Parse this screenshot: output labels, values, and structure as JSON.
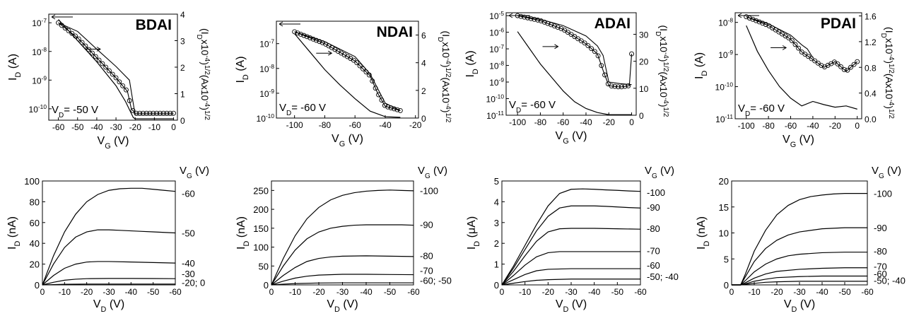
{
  "chart_data": [
    {
      "panel": "BDAI transfer",
      "type": "line",
      "title": "BDAI",
      "annotation": "V_D= -50 V",
      "xlabel": "V_G (V)",
      "ylabel": "I_D (A)",
      "y2label": "(I_Dx10^-4)^1/2(Ax10^-4)^1/2",
      "xlim": [
        -65,
        2
      ],
      "ylim_log": [
        4e-11,
        2e-07
      ],
      "y2lim": [
        0,
        4
      ],
      "xticks": [
        "-60",
        "-50",
        "-40",
        "-30",
        "-20",
        "-10",
        "0"
      ],
      "yticks": [
        "10-7",
        "10-8",
        "10-9",
        "10-10"
      ],
      "y2ticks": [
        "0",
        "1",
        "2",
        "3",
        "4"
      ],
      "series": [
        {
          "kind": "log-forward",
          "x": [
            -60,
            -50,
            -40,
            -30,
            -24,
            -22,
            -20,
            -10,
            0
          ],
          "y": [
            1e-07,
            3e-08,
            6e-09,
            1.2e-09,
            4e-10,
            1e-10,
            7e-11,
            7e-11,
            7e-11
          ]
        },
        {
          "kind": "log-reverse",
          "x": [
            -60,
            -50,
            -40,
            -30,
            -23,
            -20,
            -10,
            0
          ],
          "y": [
            1e-07,
            5e-08,
            1.2e-08,
            3e-09,
            1e-09,
            6e-11,
            6e-11,
            6e-11
          ]
        },
        {
          "kind": "sqrt",
          "x": [
            -60,
            -50,
            -40,
            -30,
            -25,
            -21,
            -20,
            0
          ],
          "y2": [
            3.8,
            3.0,
            2.2,
            1.3,
            0.7,
            0.1,
            0.05,
            0.05
          ]
        }
      ]
    },
    {
      "panel": "NDAI transfer",
      "type": "line",
      "title": "NDAI",
      "annotation": "V_D= -60 V",
      "xlabel": "V_G (V)",
      "ylabel": "I_D (A)",
      "y2label": "(I_Dx10^-4)^1/2(Ax10^-4)^1/2",
      "xlim": [
        -112,
        -18
      ],
      "ylim_log": [
        1e-10,
        8e-07
      ],
      "y2lim": [
        0,
        7
      ],
      "xticks": [
        "-100",
        "-80",
        "-60",
        "-40",
        "-20"
      ],
      "yticks": [
        "10-7",
        "10-8",
        "10-9",
        "10-10"
      ],
      "y2ticks": [
        "0",
        "2",
        "4",
        "6"
      ],
      "series": [
        {
          "kind": "log-forward",
          "x": [
            -100,
            -80,
            -60,
            -50,
            -45,
            -40,
            -30
          ],
          "y": [
            3e-07,
            1e-07,
            2e-08,
            5e-09,
            1e-09,
            3e-10,
            2e-10
          ]
        },
        {
          "kind": "log-reverse",
          "x": [
            -100,
            -80,
            -60,
            -50,
            -40,
            -30
          ],
          "y": [
            3e-07,
            1.2e-07,
            3e-08,
            6e-09,
            4e-10,
            2e-10
          ]
        },
        {
          "kind": "sqrt",
          "x": [
            -100,
            -90,
            -80,
            -70,
            -60,
            -50,
            -40,
            -30
          ],
          "y2": [
            6.1,
            4.8,
            3.5,
            2.4,
            1.4,
            0.5,
            0.1,
            0.05
          ]
        }
      ]
    },
    {
      "panel": "ADAI transfer",
      "type": "line",
      "title": "ADAI",
      "annotation": "V_D= -60 V",
      "xlabel": "V_G (V)",
      "ylabel": "I_D (A)",
      "y2label": "(I_Dx10^-4)^1/2(Ax10^-4)^1/2",
      "xlim": [
        -110,
        4
      ],
      "ylim_log": [
        1e-11,
        1.5e-05
      ],
      "y2lim": [
        0,
        38
      ],
      "xticks": [
        "-100",
        "-80",
        "-60",
        "-40",
        "-20",
        "0"
      ],
      "yticks": [
        "10-5",
        "10-6",
        "10-7",
        "10-8",
        "10-9",
        "10-10",
        "10-11"
      ],
      "y2ticks": [
        "0",
        "10",
        "20",
        "30"
      ],
      "series": [
        {
          "kind": "log-forward",
          "x": [
            -100,
            -80,
            -60,
            -40,
            -30,
            -25,
            -20,
            -10,
            -2,
            0
          ],
          "y": [
            1e-05,
            5e-06,
            1.5e-06,
            2e-07,
            5e-08,
            5e-09,
            6e-10,
            5e-10,
            6e-10,
            5e-08
          ]
        },
        {
          "kind": "log-reverse",
          "x": [
            -100,
            -80,
            -60,
            -40,
            -30,
            -25,
            -20,
            -10,
            0
          ],
          "y": [
            1e-05,
            6e-06,
            2.5e-06,
            6e-07,
            1.5e-07,
            4e-08,
            1e-09,
            8e-10,
            7e-10
          ]
        },
        {
          "kind": "sqrt",
          "x": [
            -100,
            -90,
            -80,
            -70,
            -60,
            -50,
            -40,
            -30,
            -20,
            0
          ],
          "y2": [
            31,
            25,
            19,
            14,
            9,
            5,
            2.5,
            1,
            0.2,
            0.2
          ]
        }
      ]
    },
    {
      "panel": "PDAI transfer",
      "type": "line",
      "title": "PDAI",
      "annotation": "V_D= -60 V",
      "xlabel": "V_G (V)",
      "ylabel": "I_D (A)",
      "y2label": "(I_Dx10^-4)^1/2(Ax10^-4)^1/2",
      "xlim": [
        -110,
        4
      ],
      "ylim_log": [
        1e-11,
        2e-08
      ],
      "y2lim": [
        0,
        1.65
      ],
      "xticks": [
        "-100",
        "-80",
        "-60",
        "-40",
        "-20",
        "0"
      ],
      "yticks": [
        "10-8",
        "10-9",
        "10-10",
        "10-11"
      ],
      "y2ticks": [
        "0.0",
        "0.4",
        "0.8",
        "1.2",
        "1.6"
      ],
      "series": [
        {
          "kind": "log-forward",
          "x": [
            -100,
            -80,
            -60,
            -50,
            -40,
            -30,
            -20,
            -10,
            0
          ],
          "y": [
            1.5e-08,
            8e-09,
            3e-09,
            1.2e-09,
            7e-10,
            4e-10,
            6e-10,
            3e-10,
            6e-10
          ]
        },
        {
          "kind": "log-reverse",
          "x": [
            -100,
            -80,
            -60,
            -50,
            -45,
            -40
          ],
          "y": [
            1.5e-08,
            9e-09,
            4e-09,
            2e-09,
            1.5e-09,
            8e-10
          ]
        },
        {
          "kind": "sqrt",
          "x": [
            -100,
            -90,
            -80,
            -70,
            -60,
            -50,
            -40,
            -30,
            -20,
            -10,
            0
          ],
          "y2": [
            1.45,
            1.05,
            0.75,
            0.5,
            0.32,
            0.2,
            0.27,
            0.22,
            0.18,
            0.2,
            0.15
          ]
        }
      ]
    },
    {
      "panel": "BDAI output",
      "type": "line",
      "xlabel": "V_D (V)",
      "ylabel": "I_D (nA)",
      "legend_title": "V_G (V)",
      "xlim": [
        0,
        -60
      ],
      "ylim": [
        0,
        100
      ],
      "xticks": [
        "0",
        "-10",
        "-20",
        "-30",
        "-40",
        "-50",
        "-60"
      ],
      "yticks": [
        "0",
        "20",
        "40",
        "60",
        "80",
        "100"
      ],
      "series": [
        {
          "name": "-60",
          "x": [
            0,
            -5,
            -10,
            -15,
            -20,
            -25,
            -30,
            -35,
            -40,
            -45,
            -50,
            -55,
            -60
          ],
          "values": [
            0,
            28,
            51,
            68,
            80,
            87,
            91,
            92.5,
            93,
            93,
            92,
            91,
            90
          ]
        },
        {
          "name": "-50",
          "x": [
            0,
            -5,
            -10,
            -15,
            -20,
            -25,
            -30,
            -35,
            -40,
            -45,
            -50,
            -55,
            -60
          ],
          "values": [
            0,
            20,
            36,
            46,
            51,
            53,
            53,
            52.5,
            52,
            51.5,
            51,
            50.5,
            50
          ]
        },
        {
          "name": "-40",
          "x": [
            0,
            -5,
            -10,
            -15,
            -20,
            -25,
            -30,
            -40,
            -50,
            -60
          ],
          "values": [
            0,
            9,
            16,
            20,
            22,
            22.5,
            22.5,
            22,
            21.5,
            21
          ]
        },
        {
          "name": "-30",
          "x": [
            0,
            -5,
            -10,
            -15,
            -20,
            -30,
            -40,
            -50,
            -60
          ],
          "values": [
            0,
            2.5,
            4.5,
            5.5,
            6,
            6.2,
            6.2,
            6.1,
            6
          ]
        },
        {
          "name": "-20; 0",
          "x": [
            0,
            -5,
            -10,
            -20,
            -40,
            -60
          ],
          "values": [
            0,
            0.3,
            0.6,
            0.8,
            0.8,
            0.8
          ]
        }
      ]
    },
    {
      "panel": "NDAI output",
      "type": "line",
      "xlabel": "V_D (V)",
      "ylabel": "I_D (nA)",
      "legend_title": "V_G (V)",
      "xlim": [
        0,
        -60
      ],
      "ylim": [
        0,
        275
      ],
      "xticks": [
        "0",
        "-10",
        "-20",
        "-30",
        "-40",
        "-50",
        "-60"
      ],
      "yticks": [
        "0",
        "50",
        "100",
        "150",
        "200",
        "250"
      ],
      "series": [
        {
          "name": "-100",
          "x": [
            0,
            -5,
            -10,
            -15,
            -20,
            -25,
            -30,
            -35,
            -40,
            -45,
            -50,
            -55,
            -60
          ],
          "values": [
            0,
            70,
            130,
            175,
            205,
            225,
            237,
            244,
            248,
            250,
            251,
            250,
            249
          ]
        },
        {
          "name": "-90",
          "x": [
            0,
            -5,
            -10,
            -15,
            -20,
            -25,
            -30,
            -35,
            -40,
            -45,
            -50,
            -55,
            -60
          ],
          "values": [
            0,
            50,
            92,
            122,
            140,
            150,
            155,
            158,
            159,
            159,
            159,
            159,
            158
          ]
        },
        {
          "name": "-80",
          "x": [
            0,
            -5,
            -10,
            -15,
            -20,
            -25,
            -30,
            -40,
            -50,
            -60
          ],
          "values": [
            0,
            25,
            46,
            62,
            70,
            74,
            76,
            77,
            76,
            75
          ]
        },
        {
          "name": "-70",
          "x": [
            0,
            -5,
            -10,
            -15,
            -20,
            -30,
            -40,
            -50,
            -60
          ],
          "values": [
            0,
            10,
            18,
            23,
            26,
            28,
            28,
            27.5,
            27
          ]
        },
        {
          "name": "-60; -50",
          "x": [
            0,
            -5,
            -10,
            -20,
            -30,
            -40,
            -60
          ],
          "values": [
            0,
            2,
            3.5,
            5,
            5.5,
            5.5,
            5.5
          ]
        }
      ]
    },
    {
      "panel": "ADAI output",
      "type": "line",
      "xlabel": "V_D (V)",
      "ylabel": "I_D (μA)",
      "legend_title": "V_G (V)",
      "xlim": [
        0,
        -60
      ],
      "ylim": [
        0,
        5
      ],
      "xticks": [
        "0",
        "-10",
        "-20",
        "-30",
        "-40",
        "-50",
        "-60"
      ],
      "yticks": [
        "0",
        "1",
        "2",
        "3",
        "4",
        "5"
      ],
      "series": [
        {
          "name": "-100",
          "x": [
            0,
            -5,
            -10,
            -15,
            -20,
            -25,
            -30,
            -35,
            -40,
            -45,
            -50,
            -55,
            -60
          ],
          "values": [
            0,
            0.9,
            1.9,
            2.9,
            3.8,
            4.4,
            4.6,
            4.62,
            4.6,
            4.57,
            4.55,
            4.52,
            4.5
          ]
        },
        {
          "name": "-90",
          "x": [
            0,
            -5,
            -10,
            -15,
            -20,
            -25,
            -30,
            -35,
            -40,
            -45,
            -50,
            -55,
            -60
          ],
          "values": [
            0,
            0.8,
            1.7,
            2.6,
            3.3,
            3.7,
            3.8,
            3.8,
            3.8,
            3.78,
            3.75,
            3.72,
            3.7
          ]
        },
        {
          "name": "-80",
          "x": [
            0,
            -5,
            -10,
            -15,
            -20,
            -25,
            -30,
            -40,
            -50,
            -60
          ],
          "values": [
            0,
            0.65,
            1.4,
            2.1,
            2.55,
            2.7,
            2.72,
            2.72,
            2.7,
            2.68
          ]
        },
        {
          "name": "-70",
          "x": [
            0,
            -5,
            -10,
            -15,
            -20,
            -25,
            -30,
            -40,
            -50,
            -60
          ],
          "values": [
            0,
            0.45,
            0.95,
            1.35,
            1.55,
            1.6,
            1.6,
            1.6,
            1.6,
            1.6
          ]
        },
        {
          "name": "-60",
          "x": [
            0,
            -5,
            -10,
            -15,
            -20,
            -30,
            -40,
            -50,
            -60
          ],
          "values": [
            0,
            0.25,
            0.5,
            0.68,
            0.75,
            0.78,
            0.78,
            0.78,
            0.78
          ]
        },
        {
          "name": "-50; -40",
          "x": [
            0,
            -5,
            -10,
            -15,
            -20,
            -30,
            -40,
            -60
          ],
          "values": [
            0,
            0.08,
            0.16,
            0.22,
            0.25,
            0.28,
            0.28,
            0.28
          ]
        }
      ]
    },
    {
      "panel": "PDAI output",
      "type": "line",
      "xlabel": "V_D (V)",
      "ylabel": "I_D (nA)",
      "legend_title": "V_G (V)",
      "xlim": [
        0,
        -60
      ],
      "ylim": [
        0,
        20
      ],
      "xticks": [
        "0",
        "-10",
        "-20",
        "-30",
        "-40",
        "-50",
        "-60"
      ],
      "yticks": [
        "0",
        "5",
        "10",
        "15",
        "20"
      ],
      "series": [
        {
          "name": "-100",
          "x": [
            0,
            -4,
            -6,
            -10,
            -15,
            -20,
            -25,
            -30,
            -35,
            -40,
            -45,
            -50,
            -55,
            -60
          ],
          "values": [
            0,
            0,
            2,
            6.5,
            10.5,
            13.5,
            15.3,
            16.4,
            17,
            17.3,
            17.5,
            17.6,
            17.6,
            17.6
          ]
        },
        {
          "name": "-90",
          "x": [
            0,
            -4,
            -6,
            -10,
            -15,
            -20,
            -25,
            -30,
            -40,
            -50,
            -60
          ],
          "values": [
            0,
            0,
            1.5,
            4.5,
            7,
            8.6,
            9.6,
            10.2,
            10.8,
            11,
            11
          ]
        },
        {
          "name": "-80",
          "x": [
            0,
            -4,
            -6,
            -10,
            -15,
            -20,
            -25,
            -30,
            -40,
            -50,
            -60
          ],
          "values": [
            0,
            0,
            0.8,
            2.5,
            4,
            5,
            5.6,
            5.9,
            6.2,
            6.3,
            6.3
          ]
        },
        {
          "name": "-70",
          "x": [
            0,
            -4,
            -6,
            -10,
            -15,
            -20,
            -30,
            -40,
            -50,
            -60
          ],
          "values": [
            0,
            0,
            0.4,
            1.3,
            2.1,
            2.6,
            3,
            3.2,
            3.3,
            3.3
          ]
        },
        {
          "name": "-60",
          "x": [
            0,
            -4,
            -6,
            -10,
            -15,
            -20,
            -30,
            -40,
            -50,
            -60
          ],
          "values": [
            0,
            0,
            0.2,
            0.7,
            1.1,
            1.4,
            1.6,
            1.7,
            1.7,
            1.7
          ]
        },
        {
          "name": "-50; -40",
          "x": [
            0,
            -4,
            -6,
            -10,
            -15,
            -20,
            -30,
            -40,
            -50,
            -60
          ],
          "values": [
            0,
            0,
            0.1,
            0.3,
            0.5,
            0.6,
            0.7,
            0.7,
            0.7,
            0.7
          ]
        }
      ]
    }
  ]
}
